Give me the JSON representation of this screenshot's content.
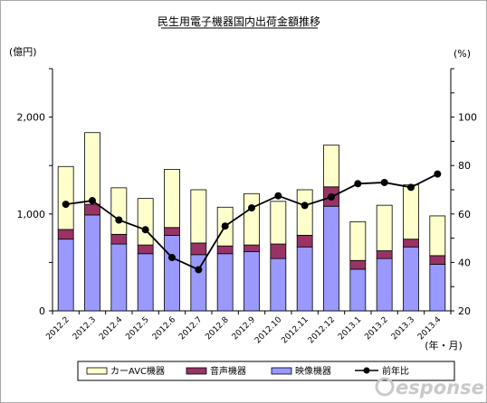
{
  "chart_data": {
    "type": "bar",
    "stacked": true,
    "title": "民生用電子機器国内出荷金額推移",
    "y_unit_left": "(億円)",
    "y_unit_right": "(%)",
    "x_unit": "(年・月)",
    "categories": [
      "2012.2",
      "2012.3",
      "2012.4",
      "2012.5",
      "2012.6",
      "2012.7",
      "2012.8",
      "2012.9",
      "2012.10",
      "2012.11",
      "2012.12",
      "2013.1",
      "2013.2",
      "2013.3",
      "2013.4"
    ],
    "ylim": [
      0,
      2500
    ],
    "yticks": [
      0,
      1000,
      2000
    ],
    "ytick_labels": [
      "0",
      "1,000",
      "2,000"
    ],
    "y2lim": [
      20,
      120
    ],
    "y2ticks": [
      20,
      40,
      60,
      80,
      100
    ],
    "series": [
      {
        "name": "映像機器",
        "color": "#9999ff",
        "values": [
          740,
          990,
          690,
          590,
          780,
          580,
          590,
          610,
          540,
          660,
          1080,
          430,
          540,
          660,
          480
        ]
      },
      {
        "name": "音声機器",
        "color": "#993366",
        "values": [
          100,
          110,
          100,
          90,
          80,
          120,
          80,
          70,
          150,
          120,
          200,
          90,
          80,
          80,
          90
        ]
      },
      {
        "name": "カーAVC機器",
        "color": "#ffffcc",
        "values": [
          650,
          740,
          480,
          480,
          600,
          550,
          400,
          530,
          440,
          470,
          430,
          400,
          470,
          560,
          410
        ]
      },
      {
        "name": "前年比",
        "type": "line",
        "axis": "right",
        "color": "#000000",
        "values": [
          64,
          65.5,
          57.5,
          53.5,
          42,
          37,
          55,
          62.5,
          67.5,
          63.5,
          67,
          72.5,
          73,
          71,
          76.5
        ]
      }
    ],
    "legend_position": "bottom",
    "grid": false
  },
  "watermark": "esponse"
}
